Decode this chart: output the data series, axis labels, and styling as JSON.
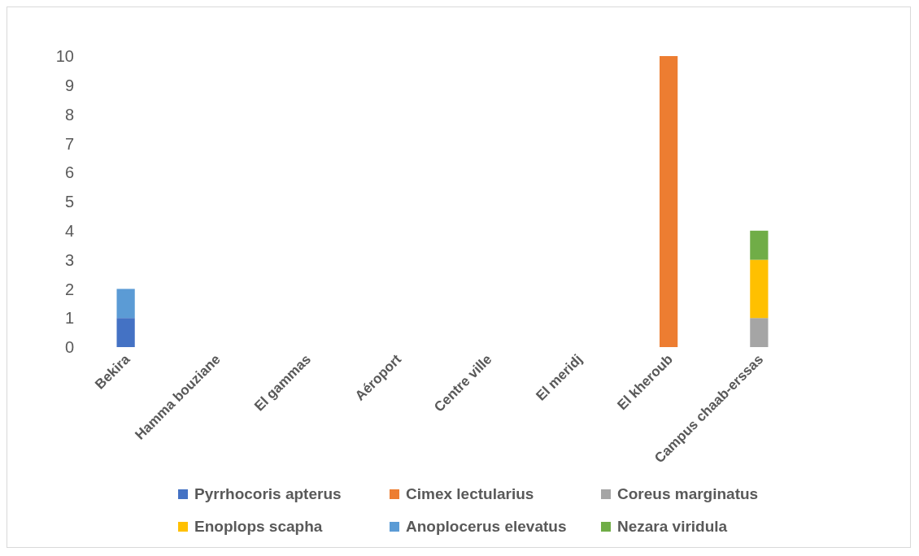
{
  "chart_data": {
    "type": "bar",
    "stacked": true,
    "categories": [
      "Bekira",
      "Hamma bouziane",
      "El gammas",
      "Aéroport",
      "Centre ville",
      "El meridj",
      "El kheroub",
      "Campus chaab-erssas"
    ],
    "series": [
      {
        "name": "Pyrrhocoris apterus",
        "color": "#4472c4",
        "values": [
          1,
          0,
          0,
          0,
          0,
          0,
          0,
          0
        ]
      },
      {
        "name": "Cimex lectularius",
        "color": "#ed7d31",
        "values": [
          0,
          0,
          0,
          0,
          0,
          0,
          10,
          0
        ]
      },
      {
        "name": "Coreus marginatus",
        "color": "#a5a5a5",
        "values": [
          0,
          0,
          0,
          0,
          0,
          0,
          0,
          1
        ]
      },
      {
        "name": "Enoplops scapha",
        "color": "#ffc000",
        "values": [
          0,
          0,
          0,
          0,
          0,
          0,
          0,
          2
        ]
      },
      {
        "name": "Anoplocerus elevatus",
        "color": "#5b9bd5",
        "values": [
          1,
          0,
          0,
          0,
          0,
          0,
          0,
          0
        ]
      },
      {
        "name": "Nezara viridula",
        "color": "#70ad47",
        "values": [
          0,
          0,
          0,
          0,
          0,
          0,
          0,
          1
        ]
      }
    ],
    "ylim": [
      0,
      10
    ],
    "yticks": [
      0,
      1,
      2,
      3,
      4,
      5,
      6,
      7,
      8,
      9,
      10
    ],
    "grid": false,
    "legend": "bottom"
  }
}
